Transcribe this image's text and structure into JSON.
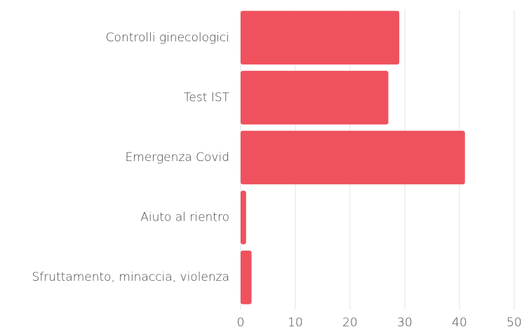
{
  "chart_data": {
    "type": "barh",
    "categories": [
      "Controlli ginecologici",
      "Test IST",
      "Emergenza Covid",
      "Aiuto al rientro",
      "Sfruttamento, minaccia, violenza"
    ],
    "values": [
      29,
      27,
      41,
      1,
      2
    ],
    "color": "#f0515e",
    "xlim": [
      0,
      50
    ],
    "xticks": [
      0,
      10,
      20,
      30,
      40,
      50
    ],
    "grid": true
  }
}
